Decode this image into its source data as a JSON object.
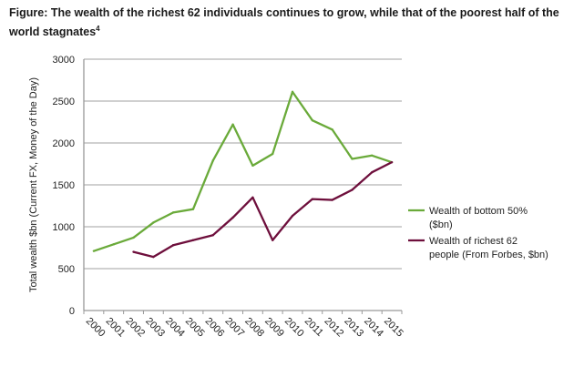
{
  "chart_data": {
    "type": "line",
    "title": "Figure: The wealth of the richest 62 individuals continues to grow, while that of the poorest half of the world stagnates",
    "title_footnote": "4",
    "xlabel": "",
    "ylabel": "Total wealth $bn (Current FX, Money of the Day)",
    "ylim": [
      0,
      3000
    ],
    "yticks": [
      0,
      500,
      1000,
      1500,
      2000,
      2500,
      3000
    ],
    "grid": true,
    "legend_placement": "right",
    "categories": [
      "2000",
      "2001",
      "2002",
      "2003",
      "2004",
      "2005",
      "2006",
      "2007",
      "2008",
      "2009",
      "2010",
      "2011",
      "2012",
      "2013",
      "2014",
      "2015"
    ],
    "series": [
      {
        "name": "Wealth of bottom 50% ($bn)",
        "legend_lines": [
          "Wealth of bottom 50%",
          "($bn)"
        ],
        "color": "#6aaa3a",
        "values": [
          710,
          790,
          870,
          1050,
          1170,
          1210,
          1790,
          2220,
          1730,
          1870,
          2610,
          2270,
          2160,
          1810,
          1850,
          1770
        ]
      },
      {
        "name": "Wealth of richest 62 people (From Forbes, $bn)",
        "legend_lines": [
          "Wealth of richest 62",
          "people (From Forbes, $bn)"
        ],
        "color": "#6e0f3c",
        "values": [
          null,
          null,
          700,
          640,
          780,
          840,
          900,
          1110,
          1350,
          840,
          1130,
          1330,
          1320,
          1440,
          1650,
          1770
        ]
      }
    ]
  }
}
